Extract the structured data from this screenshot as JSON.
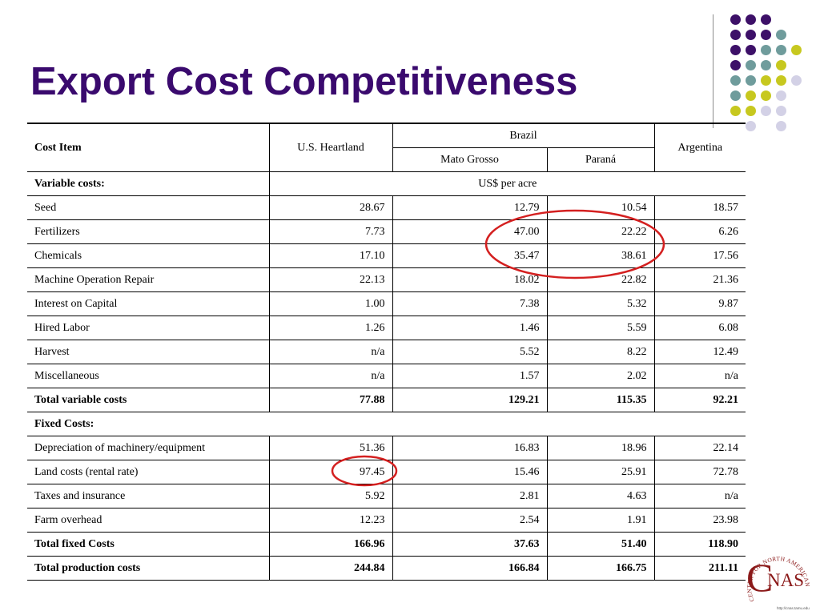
{
  "slide": {
    "title": "Export Cost Competitiveness"
  },
  "table": {
    "header": {
      "cost_item": "Cost Item",
      "us": "U.S. Heartland",
      "brazil": "Brazil",
      "mato_grosso": "Mato Grosso",
      "parana": "Paraná",
      "argentina": "Argentina"
    },
    "variable_label": "Variable costs:",
    "units": "US$ per acre",
    "variable_rows": [
      {
        "item": "Seed",
        "us": "28.67",
        "mg": "12.79",
        "pr": "10.54",
        "ar": "18.57"
      },
      {
        "item": "Fertilizers",
        "us": "7.73",
        "mg": "47.00",
        "pr": "22.22",
        "ar": "6.26"
      },
      {
        "item": "Chemicals",
        "us": "17.10",
        "mg": "35.47",
        "pr": "38.61",
        "ar": "17.56"
      },
      {
        "item": "Machine Operation Repair",
        "us": "22.13",
        "mg": "18.02",
        "pr": "22.82",
        "ar": "21.36"
      },
      {
        "item": "Interest on Capital",
        "us": "1.00",
        "mg": "7.38",
        "pr": "5.32",
        "ar": "9.87"
      },
      {
        "item": "Hired Labor",
        "us": "1.26",
        "mg": "1.46",
        "pr": "5.59",
        "ar": "6.08"
      },
      {
        "item": "Harvest",
        "us": "n/a",
        "mg": "5.52",
        "pr": "8.22",
        "ar": "12.49"
      },
      {
        "item": "Miscellaneous",
        "us": "n/a",
        "mg": "1.57",
        "pr": "2.02",
        "ar": "n/a"
      }
    ],
    "total_variable": {
      "item": "Total variable costs",
      "us": "77.88",
      "mg": "129.21",
      "pr": "115.35",
      "ar": "92.21"
    },
    "fixed_label": "Fixed Costs:",
    "fixed_rows": [
      {
        "item": "Depreciation of machinery/equipment",
        "us": "51.36",
        "mg": "16.83",
        "pr": "18.96",
        "ar": "22.14"
      },
      {
        "item": "Land costs (rental rate)",
        "us": "97.45",
        "mg": "15.46",
        "pr": "25.91",
        "ar": "72.78"
      },
      {
        "item": "Taxes and insurance",
        "us": "5.92",
        "mg": "2.81",
        "pr": "4.63",
        "ar": "n/a"
      },
      {
        "item": "Farm overhead",
        "us": "12.23",
        "mg": "2.54",
        "pr": "1.91",
        "ar": "23.98"
      }
    ],
    "total_fixed": {
      "item": "Total fixed Costs",
      "us": "166.96",
      "mg": "37.63",
      "pr": "51.40",
      "ar": "118.90"
    },
    "total_production": {
      "item": "Total production costs",
      "us": "244.84",
      "mg": "166.84",
      "pr": "166.75",
      "ar": "211.11"
    }
  },
  "logo": {
    "letters": "CNAS",
    "ring_text": "CENTER FOR NORTH AMERICAN STUDIES",
    "url": "http://cnas.tamu.edu"
  },
  "colors": {
    "title": "#3a0a6e",
    "highlight_oval": "#d42020",
    "logo": "#8b1a1a",
    "dot_purple": "#3d1068",
    "dot_teal": "#6f9c9c",
    "dot_yellow": "#c7c81f",
    "dot_lavender": "#d3d1e6"
  }
}
